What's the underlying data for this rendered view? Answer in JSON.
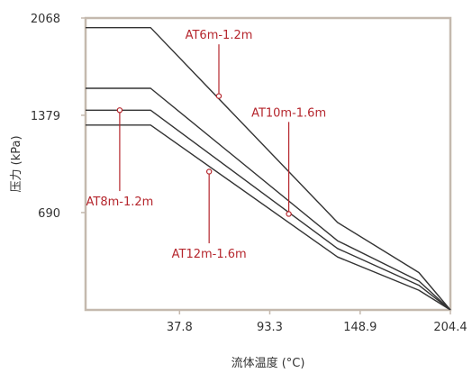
{
  "colors": {
    "frame": "#c4b9ae",
    "line": "#333333",
    "annotation": "#b5262d",
    "text": "#333333"
  },
  "chart_data": {
    "type": "line",
    "title": "",
    "xlabel": "流体温度 (°C)",
    "ylabel": "压力 (kPa)",
    "xlim": [
      -20,
      204.4
    ],
    "ylim": [
      0,
      2068
    ],
    "x_ticks": [
      {
        "value": 37.8,
        "label": "37.8"
      },
      {
        "value": 93.3,
        "label": "93.3"
      },
      {
        "value": 148.9,
        "label": "148.9"
      },
      {
        "value": 204.4,
        "label": "204.4"
      }
    ],
    "y_ticks": [
      {
        "value": 690,
        "label": "690"
      },
      {
        "value": 1379,
        "label": "1379"
      },
      {
        "value": 2068,
        "label": "2068"
      }
    ],
    "grid": false,
    "series": [
      {
        "name": "AT6m-1.2m",
        "x": [
          -20,
          20,
          135,
          185,
          204.4
        ],
        "y": [
          2000,
          2000,
          620,
          265,
          0
        ]
      },
      {
        "name": "AT10m-1.6m",
        "x": [
          -20,
          20,
          135,
          185,
          204.4
        ],
        "y": [
          1570,
          1570,
          490,
          205,
          0
        ]
      },
      {
        "name": "AT8m-1.2m",
        "x": [
          -20,
          20,
          135,
          185,
          204.4
        ],
        "y": [
          1415,
          1415,
          435,
          175,
          0
        ]
      },
      {
        "name": "AT12m-1.6m",
        "x": [
          -20,
          20,
          135,
          185,
          204.4
        ],
        "y": [
          1310,
          1310,
          375,
          140,
          0
        ]
      }
    ],
    "annotations": [
      {
        "label": "AT6m-1.2m",
        "point": [
          62,
          1515
        ],
        "label_at": [
          62,
          1920
        ],
        "anchor": "middle"
      },
      {
        "label": "AT10m-1.6m",
        "point": [
          105,
          680
        ],
        "label_at": [
          105,
          1370
        ],
        "anchor": "middle"
      },
      {
        "label": "AT8m-1.2m",
        "point": [
          1,
          1415
        ],
        "label_at": [
          1,
          740
        ],
        "anchor": "middle"
      },
      {
        "label": "AT12m-1.6m",
        "point": [
          56,
          980
        ],
        "label_at": [
          56,
          370
        ],
        "anchor": "middle"
      }
    ]
  }
}
